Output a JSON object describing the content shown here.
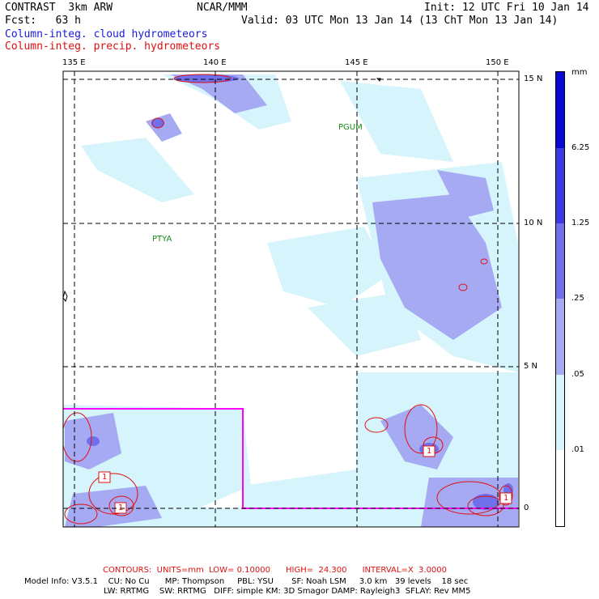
{
  "header": {
    "title_left": "CONTRAST  3km ARW",
    "forecast_label": "Fcst:   63 h",
    "center": "NCAR/MMM",
    "init": "Init: 12 UTC Fri 10 Jan 14",
    "valid": "Valid: 03 UTC Mon 13 Jan 14 (13 ChT Mon 13 Jan 14)",
    "field1": "Column-integ. cloud hydrometeors",
    "field2": "Column-integ. precip. hydrometeors"
  },
  "axes": {
    "lon_labels": [
      "135 E",
      "140 E",
      "145 E",
      "150 E"
    ],
    "lat_labels": [
      "15 N",
      "10 N",
      "5 N",
      "0"
    ]
  },
  "places": [
    "PGUM",
    "PTYA"
  ],
  "legend": {
    "unit": "mm",
    "labels": [
      "6.25",
      "1.25",
      ".25",
      ".05",
      ".01"
    ],
    "colors": [
      "#0a0ad8",
      "#3a3ae6",
      "#7070ec",
      "#a6aaf2",
      "#d6f4fb",
      "#ffffff"
    ]
  },
  "contour_labels": [
    "1",
    "1",
    "1",
    "1"
  ],
  "footer": {
    "contours": "CONTOURS:  UNITS=mm  LOW= 0.10000      HIGH=  24.300      INTERVAL=X  3.0000",
    "model_line1": "Model Info: V3.5.1    CU: No Cu      MP: Thompson     PBL: YSU       SF: Noah LSM     3.0 km   39 levels    18 sec",
    "model_line2": "LW: RRTMG    SW: RRTMG   DIFF: simple KM: 3D Smagor DAMP: Rayleigh3  SFLAY: Rev MM5"
  }
}
